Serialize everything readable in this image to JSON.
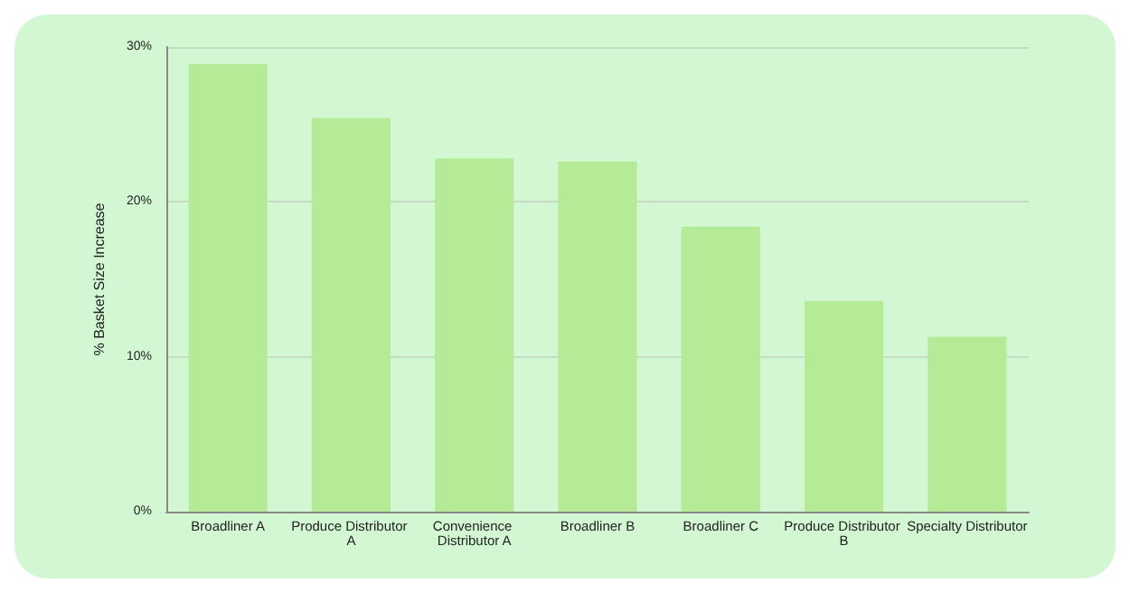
{
  "chart_data": {
    "type": "bar",
    "ylabel": "% Basket Size Increase",
    "categories": [
      "Broadliner A",
      "Produce Distributor A",
      "Convenience Distributor A",
      "Broadliner B",
      "Broadliner C",
      "Produce Distributor B",
      "Specialty Distributor"
    ],
    "values": [
      28.9,
      25.4,
      22.8,
      22.6,
      18.4,
      13.6,
      11.3
    ],
    "color": "#b5eb96",
    "ylim": [
      0,
      30
    ],
    "yticks": [
      {
        "value": 0,
        "label": "0%"
      },
      {
        "value": 10,
        "label": "10%"
      },
      {
        "value": 20,
        "label": "20%"
      },
      {
        "value": 30,
        "label": "30%"
      }
    ],
    "grid": "y"
  }
}
